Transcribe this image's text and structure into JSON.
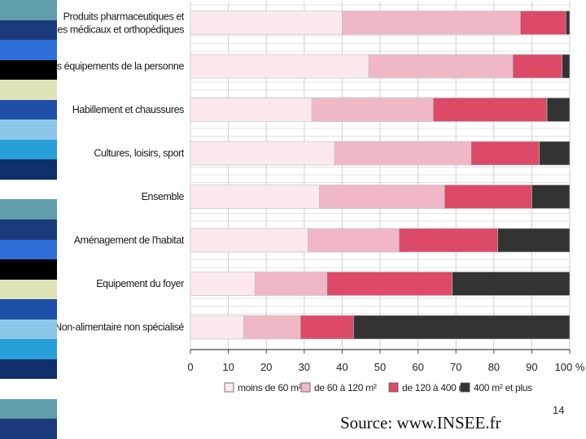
{
  "slide": {
    "source": "Source: www.INSEE.fr",
    "page_number": "14"
  },
  "decoration": {
    "strip_colors": [
      "#5f9eaa",
      "#1b3a7a",
      "#2f6fd8",
      "#000000",
      "#e0e2b8",
      "#1e4fa8",
      "#8cc7e8",
      "#2aa0d8",
      "#0f2f6b",
      "#ffffff",
      "#5f9eaa",
      "#1b3a7a",
      "#2f6fd8",
      "#000000",
      "#e0e2b8",
      "#1e4fa8",
      "#8cc7e8",
      "#2aa0d8",
      "#0f2f6b",
      "#ffffff",
      "#5f9eaa",
      "#1b3a7a"
    ]
  },
  "chart_data": {
    "type": "bar",
    "orientation": "horizontal",
    "stacked": true,
    "categories": [
      "Produits pharmaceutiques et|articles médicaux et orthopédiques",
      "Autres équipements de la personne",
      "Habillement et chaussures",
      "Cultures, loisirs, sport",
      "Ensemble",
      "Aménagement de l'habitat",
      "Equipement du foyer",
      "Non-alimentaire non spécialisé"
    ],
    "series": [
      {
        "name": "moins de 60 m²",
        "color": "#fbe9ee",
        "values": [
          40,
          47,
          32,
          38,
          34,
          31,
          17,
          14
        ]
      },
      {
        "name": "de 60 à 120 m²",
        "color": "#f0b8c7",
        "values": [
          47,
          38,
          32,
          36,
          33,
          24,
          19,
          15
        ]
      },
      {
        "name": "de 120 à 400 m²",
        "color": "#dc4a68",
        "values": [
          12,
          13,
          30,
          18,
          23,
          26,
          33,
          14
        ]
      },
      {
        "name": "400 m² et plus",
        "color": "#333333",
        "values": [
          1,
          2,
          6,
          8,
          10,
          19,
          31,
          57
        ]
      }
    ],
    "xlim": [
      0,
      100
    ],
    "x_ticks": [
      "0",
      "10",
      "20",
      "30",
      "40",
      "50",
      "60",
      "70",
      "80",
      "90",
      "100 %"
    ],
    "grid": true,
    "legend_position": "bottom"
  }
}
